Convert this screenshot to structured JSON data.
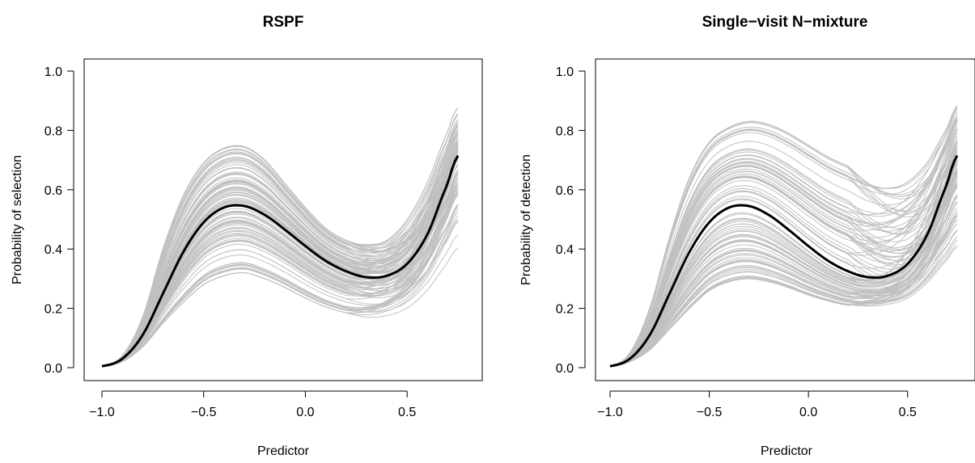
{
  "chart_data": [
    {
      "type": "line",
      "title": "RSPF",
      "xlabel": "Predictor",
      "ylabel": "Probability of selection",
      "xlim": [
        -1.0,
        0.75
      ],
      "ylim": [
        0.0,
        1.0
      ],
      "xticks": [
        "-1.0",
        "-0.5",
        "0.0",
        "0.5"
      ],
      "yticks": [
        "0.0",
        "0.2",
        "0.4",
        "0.6",
        "0.8",
        "1.0"
      ],
      "grid": false,
      "legend": "none",
      "series": [
        {
          "role": "mean",
          "color": "#000000",
          "x": [
            -1.0,
            -0.9,
            -0.8,
            -0.7,
            -0.6,
            -0.5,
            -0.4,
            -0.3,
            -0.2,
            -0.1,
            0.0,
            0.1,
            0.2,
            0.3,
            0.4,
            0.5,
            0.6,
            0.7,
            0.75
          ],
          "values": [
            0.005,
            0.03,
            0.11,
            0.25,
            0.39,
            0.49,
            0.54,
            0.545,
            0.515,
            0.465,
            0.41,
            0.36,
            0.325,
            0.305,
            0.31,
            0.35,
            0.45,
            0.62,
            0.715
          ]
        },
        {
          "role": "replicate-envelope-upper",
          "color": "#c0c0c0",
          "x": [
            -1.0,
            -0.9,
            -0.8,
            -0.7,
            -0.6,
            -0.5,
            -0.4,
            -0.3,
            -0.2,
            -0.1,
            0.0,
            0.1,
            0.2,
            0.3,
            0.4,
            0.5,
            0.6,
            0.7,
            0.75
          ],
          "values": [
            0.005,
            0.04,
            0.17,
            0.4,
            0.58,
            0.69,
            0.74,
            0.745,
            0.7,
            0.62,
            0.54,
            0.47,
            0.43,
            0.42,
            0.44,
            0.52,
            0.66,
            0.84,
            0.92
          ]
        },
        {
          "role": "replicate-envelope-lower",
          "color": "#c0c0c0",
          "x": [
            -1.0,
            -0.9,
            -0.8,
            -0.7,
            -0.6,
            -0.5,
            -0.4,
            -0.3,
            -0.2,
            -0.1,
            0.0,
            0.1,
            0.2,
            0.3,
            0.4,
            0.5,
            0.6,
            0.7,
            0.75
          ],
          "values": [
            0.003,
            0.02,
            0.07,
            0.15,
            0.22,
            0.28,
            0.31,
            0.32,
            0.3,
            0.27,
            0.235,
            0.205,
            0.185,
            0.17,
            0.175,
            0.2,
            0.26,
            0.35,
            0.4
          ]
        }
      ],
      "replicate_count": 100,
      "replicate_color": "#c0c0c0"
    },
    {
      "type": "line",
      "title": "Single−visit N−mixture",
      "xlabel": "Predictor",
      "ylabel": "Probability of detection",
      "xlim": [
        -1.0,
        0.75
      ],
      "ylim": [
        0.0,
        1.0
      ],
      "xticks": [
        "-1.0",
        "-0.5",
        "0.0",
        "0.5"
      ],
      "yticks": [
        "0.0",
        "0.2",
        "0.4",
        "0.6",
        "0.8",
        "1.0"
      ],
      "grid": false,
      "legend": "none",
      "series": [
        {
          "role": "mean",
          "color": "#000000",
          "x": [
            -1.0,
            -0.9,
            -0.8,
            -0.7,
            -0.6,
            -0.5,
            -0.4,
            -0.3,
            -0.2,
            -0.1,
            0.0,
            0.1,
            0.2,
            0.3,
            0.4,
            0.5,
            0.6,
            0.7,
            0.75
          ],
          "values": [
            0.005,
            0.03,
            0.11,
            0.25,
            0.39,
            0.49,
            0.54,
            0.545,
            0.515,
            0.465,
            0.41,
            0.36,
            0.325,
            0.305,
            0.31,
            0.35,
            0.45,
            0.62,
            0.715
          ]
        },
        {
          "role": "replicate-envelope-upper",
          "color": "#c0c0c0",
          "x": [
            -1.0,
            -0.9,
            -0.8,
            -0.7,
            -0.6,
            -0.5,
            -0.4,
            -0.3,
            -0.2,
            -0.1,
            0.0,
            0.1,
            0.2,
            0.3,
            0.4,
            0.5,
            0.6,
            0.7,
            0.75
          ],
          "values": [
            0.005,
            0.05,
            0.2,
            0.44,
            0.64,
            0.76,
            0.81,
            0.83,
            0.82,
            0.79,
            0.75,
            0.71,
            0.68,
            0.66,
            0.66,
            0.69,
            0.76,
            0.87,
            0.94
          ]
        },
        {
          "role": "replicate-envelope-lower",
          "color": "#c0c0c0",
          "x": [
            -1.0,
            -0.9,
            -0.8,
            -0.7,
            -0.6,
            -0.5,
            -0.4,
            -0.3,
            -0.2,
            -0.1,
            0.0,
            0.1,
            0.2,
            0.3,
            0.4,
            0.5,
            0.6,
            0.7,
            0.75
          ],
          "values": [
            0.003,
            0.02,
            0.06,
            0.13,
            0.2,
            0.26,
            0.29,
            0.3,
            0.29,
            0.27,
            0.245,
            0.225,
            0.21,
            0.205,
            0.21,
            0.23,
            0.28,
            0.35,
            0.39
          ]
        }
      ],
      "replicate_count": 100,
      "replicate_color": "#c0c0c0"
    }
  ]
}
